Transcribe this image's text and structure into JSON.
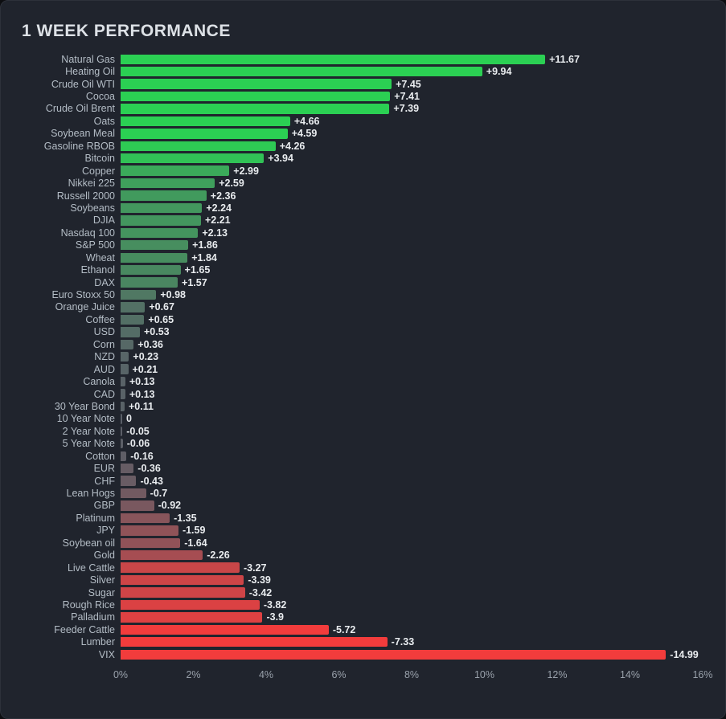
{
  "title": "1 WEEK PERFORMANCE",
  "chart_data": {
    "type": "bar",
    "orientation": "horizontal",
    "title": "1 WEEK PERFORMANCE",
    "xlabel": "",
    "ylabel": "",
    "x_max": 16,
    "x_ticks": [
      "0%",
      "2%",
      "4%",
      "6%",
      "8%",
      "10%",
      "12%",
      "14%",
      "16%"
    ],
    "grid": false,
    "legend": false,
    "color_scale_max": 4.5,
    "colors": {
      "background": "#20242d",
      "positive": "#2bd053",
      "negative": "#f23c3c",
      "neutral": "#5a5f68",
      "label": "#b4bdc6",
      "value": "#e9ecef",
      "axis": "#99a1ab",
      "title": "#dde1e6"
    },
    "categories": [
      "Natural Gas",
      "Heating Oil",
      "Crude Oil WTI",
      "Cocoa",
      "Crude Oil Brent",
      "Oats",
      "Soybean Meal",
      "Gasoline RBOB",
      "Bitcoin",
      "Copper",
      "Nikkei 225",
      "Russell 2000",
      "Soybeans",
      "DJIA",
      "Nasdaq 100",
      "S&P 500",
      "Wheat",
      "Ethanol",
      "DAX",
      "Euro Stoxx 50",
      "Orange Juice",
      "Coffee",
      "USD",
      "Corn",
      "NZD",
      "AUD",
      "Canola",
      "CAD",
      "30 Year Bond",
      "10 Year Note",
      "2 Year Note",
      "5 Year Note",
      "Cotton",
      "EUR",
      "CHF",
      "Lean Hogs",
      "GBP",
      "Platinum",
      "JPY",
      "Soybean oil",
      "Gold",
      "Live Cattle",
      "Silver",
      "Sugar",
      "Rough Rice",
      "Palladium",
      "Feeder Cattle",
      "Lumber",
      "VIX"
    ],
    "values": [
      11.67,
      9.94,
      7.45,
      7.41,
      7.39,
      4.66,
      4.59,
      4.26,
      3.94,
      2.99,
      2.59,
      2.36,
      2.24,
      2.21,
      2.13,
      1.86,
      1.84,
      1.65,
      1.57,
      0.98,
      0.67,
      0.65,
      0.53,
      0.36,
      0.23,
      0.21,
      0.13,
      0.13,
      0.11,
      0,
      -0.05,
      -0.06,
      -0.16,
      -0.36,
      -0.43,
      -0.7,
      -0.92,
      -1.35,
      -1.59,
      -1.64,
      -2.26,
      -3.27,
      -3.39,
      -3.42,
      -3.82,
      -3.9,
      -5.72,
      -7.33,
      -14.99
    ],
    "value_labels": [
      "+11.67",
      "+9.94",
      "+7.45",
      "+7.41",
      "+7.39",
      "+4.66",
      "+4.59",
      "+4.26",
      "+3.94",
      "+2.99",
      "+2.59",
      "+2.36",
      "+2.24",
      "+2.21",
      "+2.13",
      "+1.86",
      "+1.84",
      "+1.65",
      "+1.57",
      "+0.98",
      "+0.67",
      "+0.65",
      "+0.53",
      "+0.36",
      "+0.23",
      "+0.21",
      "+0.13",
      "+0.13",
      "+0.11",
      "0",
      "-0.05",
      "-0.06",
      "-0.16",
      "-0.36",
      "-0.43",
      "-0.7",
      "-0.92",
      "-1.35",
      "-1.59",
      "-1.64",
      "-2.26",
      "-3.27",
      "-3.39",
      "-3.42",
      "-3.82",
      "-3.9",
      "-5.72",
      "-7.33",
      "-14.99"
    ]
  }
}
